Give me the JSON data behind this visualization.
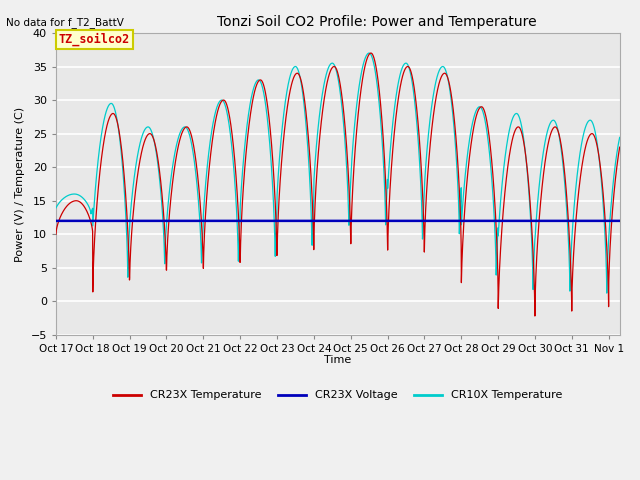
{
  "title": "Tonzi Soil CO2 Profile: Power and Temperature",
  "top_left_text": "No data for f_T2_BattV",
  "ylabel": "Power (V) / Temperature (C)",
  "xlabel": "Time",
  "ylim": [
    -5,
    40
  ],
  "yticks": [
    -5,
    0,
    5,
    10,
    15,
    20,
    25,
    30,
    35,
    40
  ],
  "xtick_labels": [
    "Oct 17",
    "Oct 18",
    "Oct 19",
    "Oct 20",
    "Oct 21",
    "Oct 22",
    "Oct 23",
    "Oct 24",
    "Oct 25",
    "Oct 26",
    "Oct 27",
    "Oct 28",
    "Oct 29",
    "Oct 30",
    "Oct 31",
    "Nov 1"
  ],
  "box_label": "TZ_soilco2",
  "box_color": "#ffffcc",
  "box_edge_color": "#cccc00",
  "cr23x_temp_color": "#cc0000",
  "cr23x_volt_color": "#0000bb",
  "cr10x_temp_color": "#00cccc",
  "voltage_value": 12.0,
  "background_color": "#e8e8e8",
  "grid_color": "#ffffff",
  "legend_labels": [
    "CR23X Temperature",
    "CR23X Voltage",
    "CR10X Temperature"
  ],
  "fig_width": 6.4,
  "fig_height": 4.8,
  "dpi": 100
}
